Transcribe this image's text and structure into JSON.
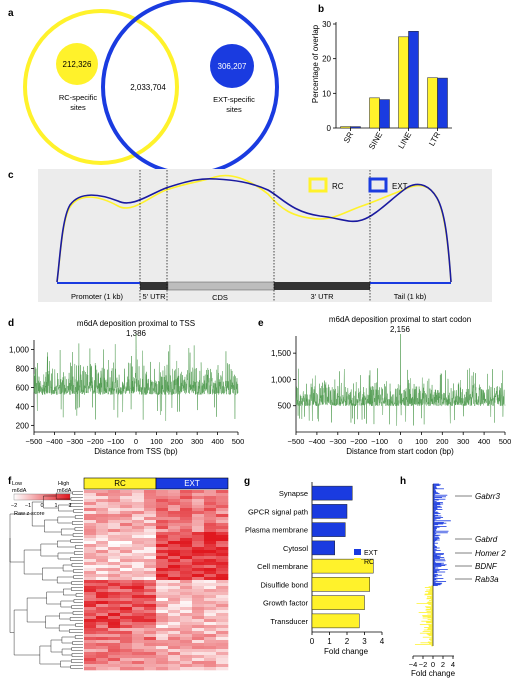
{
  "panel_letters": {
    "a": "a",
    "b": "b",
    "c": "c",
    "d": "d",
    "e": "e",
    "f": "f",
    "g": "g",
    "h": "h"
  },
  "colors": {
    "rc": "#FFF22B",
    "ext": "#1A3BE0",
    "trace": "#4E9A4E",
    "heat_low": "#FFFFFF",
    "heat_high": "#E0181F"
  },
  "panel_a": {
    "rc_count": "212,326",
    "ext_count": "306,207",
    "overlap_count": "2,033,704",
    "rc_label_1": "RC-specific",
    "rc_label_2": "sites",
    "ext_label_1": "EXT-specific",
    "ext_label_2": "sites"
  },
  "panel_c": {
    "legend_rc": "RC",
    "legend_ext": "EXT",
    "regions": [
      "Promoter (1 kb)",
      "5′ UTR",
      "CDS",
      "3′ UTR",
      "Tail (1 kb)"
    ]
  },
  "panel_d": {
    "title": "m6dA deposition proximal to TSS",
    "peak_label": "1,386",
    "xlabel": "Distance from TSS (bp)"
  },
  "panel_e": {
    "title": "m6dA deposition proximal to start codon",
    "peak_label": "2,156",
    "xlabel": "Distance from start codon (bp)"
  },
  "panel_f": {
    "low": "Low",
    "high": "High",
    "low2": "m6dA",
    "high2": "m6dA",
    "zlabel": "Raw z-score",
    "scale_ticks": [
      "−2",
      "−1",
      "0",
      "1",
      "2"
    ],
    "group_rc": "RC",
    "group_ext": "EXT"
  },
  "panel_h": {
    "genes": [
      "Gabrr3",
      "Gabrd",
      "Homer 2",
      "BDNF",
      "Rab3a"
    ],
    "xlabel": "Fold change",
    "xticks": [
      "−4",
      "−2",
      "0",
      "2",
      "4"
    ]
  },
  "chart_data": [
    {
      "panel": "b",
      "type": "bar",
      "categories": [
        "SR",
        "SINE",
        "LINE",
        "LTR"
      ],
      "series": [
        {
          "name": "RC",
          "values": [
            0.4,
            8.7,
            26.3,
            14.5
          ]
        },
        {
          "name": "EXT",
          "values": [
            0.4,
            8.2,
            27.9,
            14.4
          ]
        }
      ],
      "ylabel": "Percentage of overlap",
      "ylim": [
        0,
        30
      ],
      "yticks": [
        0,
        10,
        20,
        30
      ]
    },
    {
      "panel": "d",
      "type": "line",
      "title": "m6dA deposition proximal to TSS",
      "xlabel": "Distance from TSS (bp)",
      "xlim": [
        -500,
        500
      ],
      "ylim": [
        130,
        1100
      ],
      "xticks": [
        -500,
        -400,
        -300,
        -200,
        -100,
        0,
        100,
        200,
        300,
        400,
        500
      ],
      "yticks": [
        200,
        400,
        600,
        800,
        1000
      ],
      "ytick_labels": [
        "200",
        "400",
        "600",
        "800",
        "1,000"
      ],
      "peak": {
        "x": 0,
        "y": 1386,
        "label": "1,386"
      },
      "baseline_range": [
        400,
        750
      ]
    },
    {
      "panel": "e",
      "type": "line",
      "title": "m6dA deposition proximal to start codon",
      "xlabel": "Distance from start codon (bp)",
      "xlim": [
        -500,
        500
      ],
      "ylim": [
        0,
        1750
      ],
      "xticks": [
        -500,
        -400,
        -300,
        -200,
        -100,
        0,
        100,
        200,
        300,
        400,
        500
      ],
      "yticks": [
        500,
        1000,
        1500
      ],
      "ytick_labels": [
        "500",
        "1,000",
        "1,500"
      ],
      "peak": {
        "x": 0,
        "y": 2156,
        "label": "2,156"
      },
      "baseline_range": [
        330,
        800
      ]
    },
    {
      "panel": "g",
      "type": "bar",
      "orientation": "horizontal",
      "categories": [
        "Synapse",
        "GPCR signal path",
        "Plasma membrane",
        "Cytosol",
        "Cell membrane",
        "Disulfide bond",
        "Growth factor",
        "Transducer"
      ],
      "values": [
        2.3,
        2.0,
        1.9,
        1.3,
        3.5,
        3.3,
        3.0,
        2.7
      ],
      "groups": [
        "EXT",
        "EXT",
        "EXT",
        "EXT",
        "RC",
        "RC",
        "RC",
        "RC"
      ],
      "legend": [
        "EXT",
        "RC"
      ],
      "xlabel": "Fold change",
      "xlim": [
        0,
        4
      ],
      "xticks": [
        0,
        1,
        2,
        3,
        4
      ]
    },
    {
      "panel": "h",
      "type": "bar",
      "orientation": "horizontal",
      "xlabel": "Fold change",
      "xlim": [
        -4,
        4
      ],
      "series": [
        {
          "name": "EXT",
          "direction": "positive",
          "max": 4
        },
        {
          "name": "RC",
          "direction": "negative",
          "max": -4
        }
      ]
    }
  ]
}
